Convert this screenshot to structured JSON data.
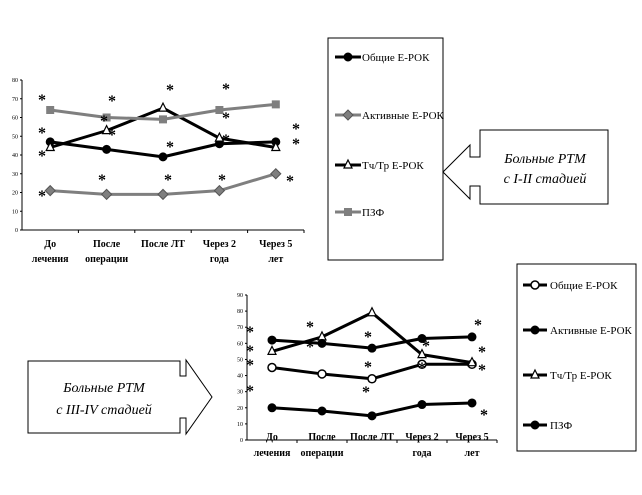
{
  "chart_data": [
    {
      "type": "line",
      "categories": [
        "До лечения",
        "После операции",
        "После ЛТ",
        "Через 2 года",
        "Через 5 лет"
      ],
      "ylim": [
        0,
        80
      ],
      "yticks": [
        0,
        10,
        20,
        30,
        40,
        50,
        60,
        70,
        80
      ],
      "legend_position": "right",
      "series": [
        {
          "name": "Общие Е-РОК",
          "values": [
            47,
            43,
            39,
            46,
            47
          ],
          "color": "#000000",
          "marker": "circle-filled"
        },
        {
          "name": "Активные Е-РОК",
          "values": [
            21,
            19,
            19,
            21,
            30
          ],
          "color": "#7f7f7f",
          "marker": "diamond"
        },
        {
          "name": "Тч/Тр Е-РОК",
          "values": [
            44,
            53,
            65,
            49,
            44
          ],
          "color": "#000000",
          "marker": "triangle-open"
        },
        {
          "name": "ПЗФ",
          "values": [
            64,
            60,
            59,
            64,
            67
          ],
          "color": "#7f7f7f",
          "marker": "square"
        }
      ],
      "callout": [
        "Больные РТМ",
        "с I-II стадией"
      ]
    },
    {
      "type": "line",
      "categories": [
        "До лечения",
        "После операции",
        "После ЛТ",
        "Через 2 года",
        "Через 5 лет"
      ],
      "ylim": [
        0,
        90
      ],
      "yticks": [
        0,
        10,
        20,
        30,
        40,
        50,
        60,
        70,
        80,
        90
      ],
      "legend_position": "right",
      "series": [
        {
          "name": "Общие Е-РОК",
          "values": [
            45,
            41,
            38,
            47,
            47
          ],
          "color": "#000000",
          "marker": "circle-open"
        },
        {
          "name": "Активные Е-РОК",
          "values": [
            20,
            18,
            15,
            22,
            23
          ],
          "color": "#000000",
          "marker": "circle-filled"
        },
        {
          "name": "Тч/Тр Е-РОК",
          "values": [
            55,
            64,
            79,
            53,
            48
          ],
          "color": "#000000",
          "marker": "triangle-open"
        },
        {
          "name": "ПЗФ",
          "values": [
            62,
            60,
            57,
            63,
            64
          ],
          "color": "#000000",
          "marker": "circle-filled"
        }
      ],
      "callout": [
        "Больные РТМ",
        "с III-IV стадией"
      ]
    }
  ],
  "significance_marker": "*"
}
